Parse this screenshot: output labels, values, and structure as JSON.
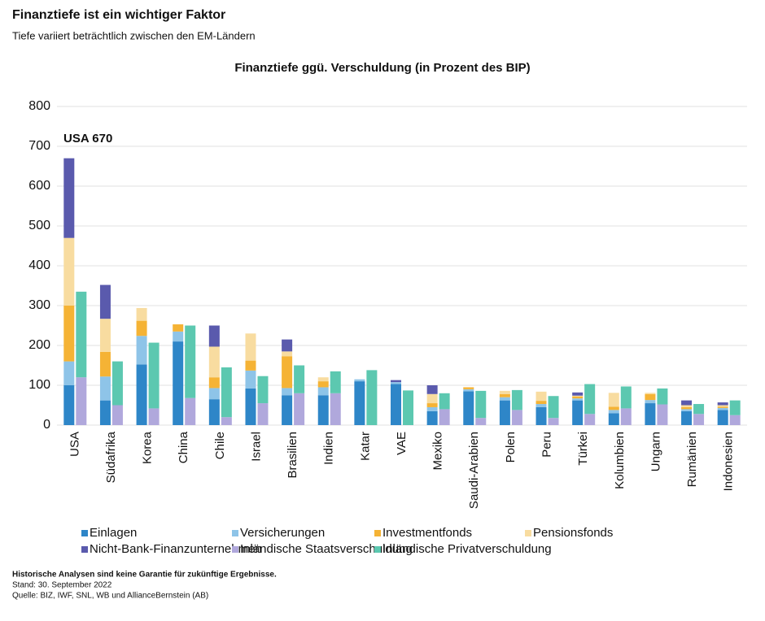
{
  "chart_data": {
    "type": "grouped_stacked_bar",
    "title": "Finanztiefe ist ein wichtiger Faktor",
    "subtitle": "Tiefe variiert beträchtlich zwischen den EM-Ländern",
    "chart_title": "Finanztiefe ggü. Verschuldung (in Prozent des BIP)",
    "annotation": "USA 670",
    "categories": [
      "USA",
      "Südafrika",
      "Korea",
      "China",
      "Chile",
      "Israel",
      "Brasilien",
      "Indien",
      "Katar",
      "VAE",
      "Mexiko",
      "Saudi-Arabien",
      "Polen",
      "Peru",
      "Türkei",
      "Kolumbien",
      "Ungarn",
      "Rumänien",
      "Indonesien"
    ],
    "series_groups": [
      [
        {
          "name": "Einlagen",
          "color": "#2e86c8",
          "values": [
            100,
            62,
            152,
            210,
            65,
            92,
            75,
            75,
            110,
            103,
            35,
            85,
            62,
            45,
            62,
            30,
            55,
            35,
            38
          ]
        },
        {
          "name": "Versicherungen",
          "color": "#8ec4e8",
          "values": [
            60,
            60,
            72,
            25,
            28,
            45,
            18,
            20,
            5,
            5,
            10,
            5,
            8,
            8,
            5,
            8,
            8,
            5,
            5
          ]
        },
        {
          "name": "Investmentfonds",
          "color": "#f5b335",
          "values": [
            140,
            62,
            38,
            18,
            27,
            25,
            80,
            15,
            0,
            0,
            10,
            5,
            8,
            8,
            5,
            8,
            15,
            5,
            3
          ]
        },
        {
          "name": "Pensionsfonds",
          "color": "#f8dca0",
          "values": [
            170,
            83,
            32,
            0,
            77,
            68,
            12,
            10,
            0,
            0,
            23,
            0,
            8,
            23,
            2,
            35,
            3,
            5,
            4
          ]
        },
        {
          "name": "Nicht-Bank-Finanzunternehmen",
          "color": "#5a5aad",
          "values": [
            200,
            85,
            0,
            0,
            53,
            0,
            30,
            0,
            0,
            5,
            22,
            0,
            0,
            0,
            8,
            0,
            0,
            12,
            7
          ]
        }
      ],
      [
        {
          "name": "Inländische Staatsverschuldung",
          "color": "#b0a8dc",
          "values": [
            120,
            50,
            42,
            68,
            20,
            55,
            80,
            80,
            0,
            0,
            40,
            18,
            38,
            18,
            28,
            42,
            52,
            28,
            25
          ]
        },
        {
          "name": "Inländische Privatverschuldung",
          "color": "#5cc8b0",
          "values": [
            215,
            110,
            165,
            182,
            125,
            68,
            70,
            55,
            138,
            87,
            40,
            68,
            50,
            55,
            75,
            55,
            40,
            25,
            37
          ]
        }
      ]
    ],
    "ylim": [
      0,
      800
    ],
    "yticks": [
      0,
      100,
      200,
      300,
      400,
      500,
      600,
      700,
      800
    ],
    "grid": true,
    "footnotes": [
      "Historische Analysen sind keine Garantie für zukünftige Ergebnisse.",
      "Stand: 30. September 2022",
      "Quelle: BIZ, IWF, SNL, WB und AllianceBernstein (AB)"
    ]
  }
}
